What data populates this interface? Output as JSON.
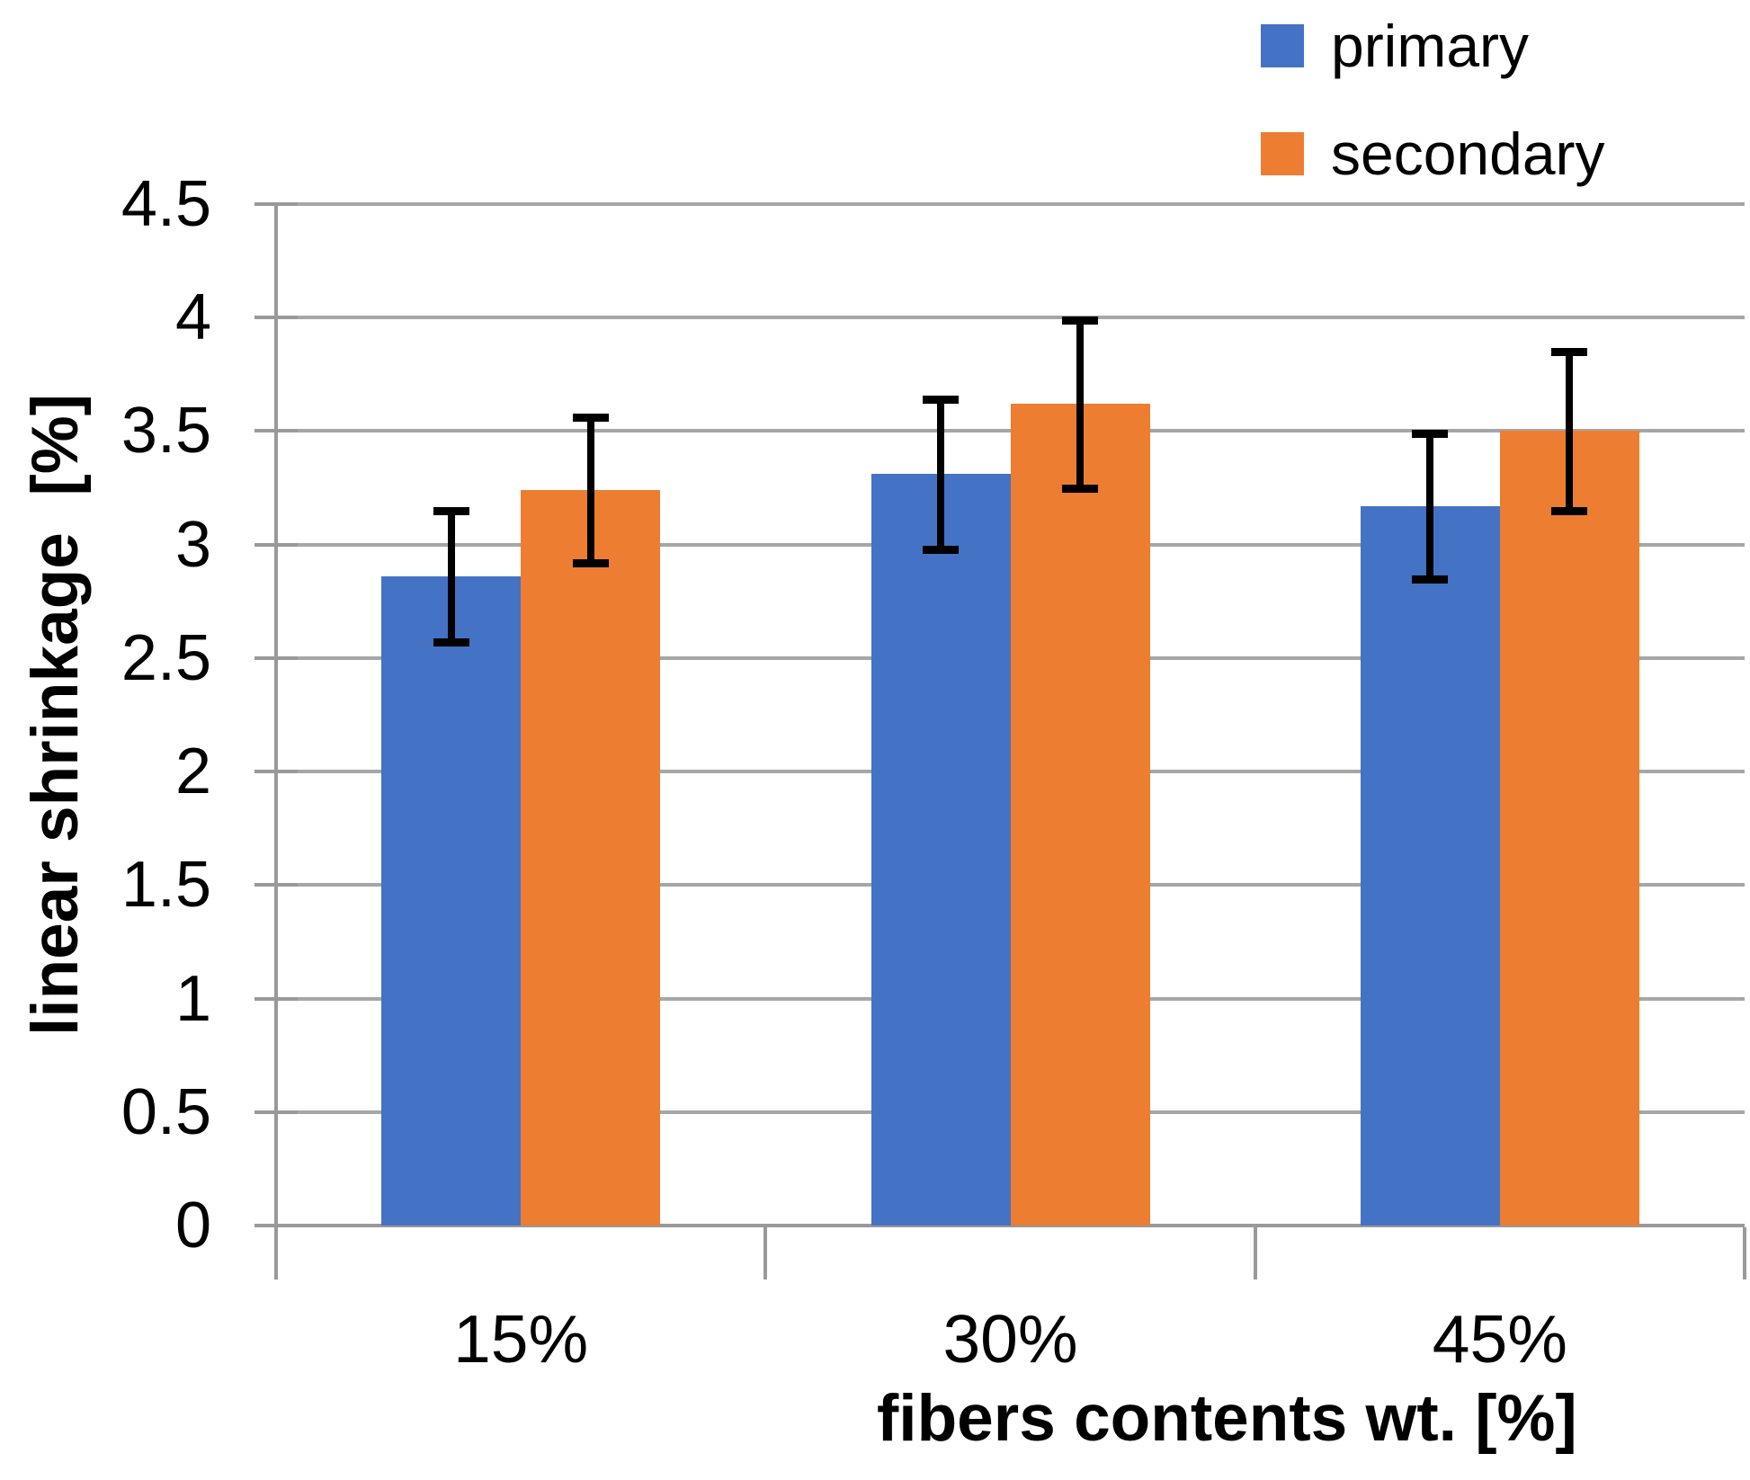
{
  "chart_data": {
    "type": "bar",
    "title": "",
    "categories": [
      "15%",
      "30%",
      "45%"
    ],
    "series": [
      {
        "name": "primary",
        "color": "#4472C4",
        "values": [
          2.86,
          3.31,
          3.17
        ],
        "errors": [
          0.29,
          0.33,
          0.32
        ]
      },
      {
        "name": "secondary",
        "color": "#ED7D31",
        "values": [
          3.24,
          3.62,
          3.5
        ],
        "errors": [
          0.32,
          0.37,
          0.35
        ]
      }
    ],
    "xlabel": "fibers contents wt. [%]",
    "ylabel": "linear shrinkage  [%]",
    "ylim": [
      0,
      4.5
    ],
    "ytick_step": 0.5,
    "yticks": [
      "0",
      "0.5",
      "1",
      "1.5",
      "2",
      "2.5",
      "3",
      "3.5",
      "4",
      "4.5"
    ],
    "grid": true,
    "legend_position": "top-right",
    "colors": {
      "gridline": "#a6a6a6",
      "axis": "#999999",
      "error_bar": "#000000",
      "text": "#000000"
    }
  }
}
